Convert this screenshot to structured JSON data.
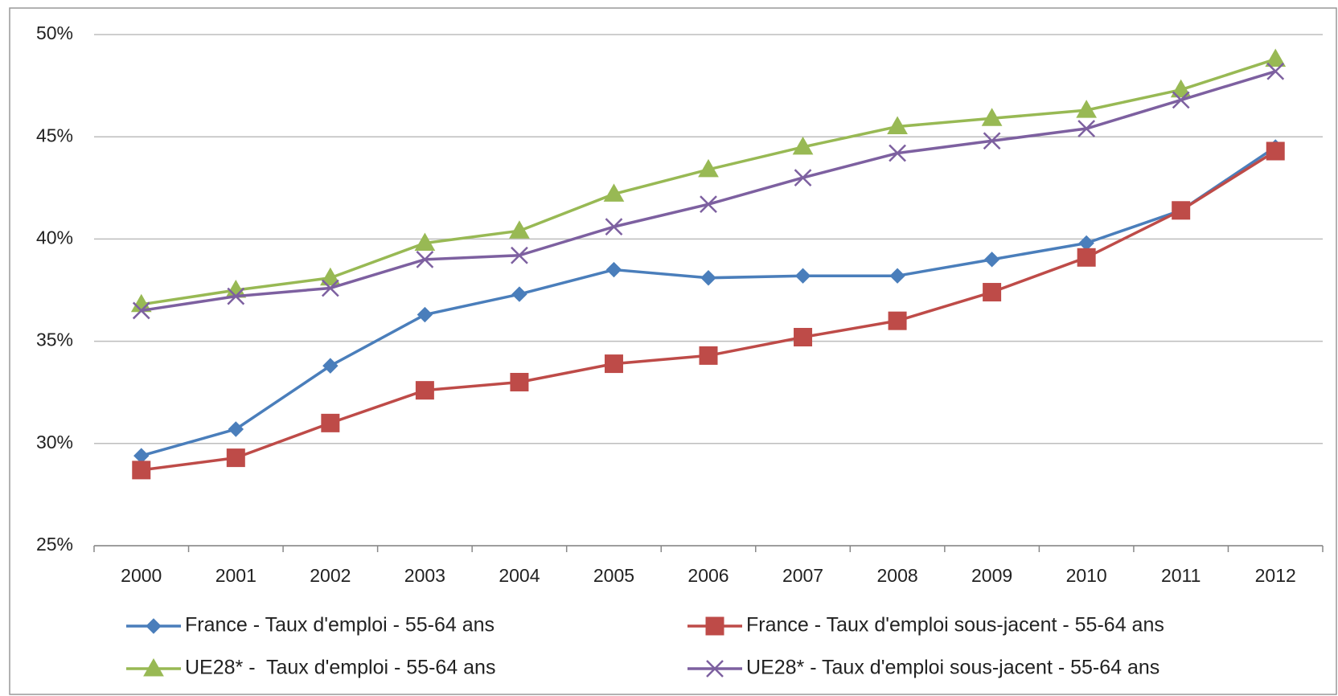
{
  "chart_data": {
    "type": "line",
    "categories": [
      "2000",
      "2001",
      "2002",
      "2003",
      "2004",
      "2005",
      "2006",
      "2007",
      "2008",
      "2009",
      "2010",
      "2011",
      "2012"
    ],
    "series": [
      {
        "name": "France - Taux d'emploi - 55-64 ans",
        "color": "#4a7ebb",
        "marker": "diamond",
        "values": [
          29.4,
          30.7,
          33.8,
          36.3,
          37.3,
          38.5,
          38.1,
          38.2,
          38.2,
          39.0,
          39.8,
          41.4,
          44.5
        ]
      },
      {
        "name": "France - Taux d'emploi sous-jacent - 55-64 ans",
        "color": "#be4b48",
        "marker": "square",
        "values": [
          28.7,
          29.3,
          31.0,
          32.6,
          33.0,
          33.9,
          34.3,
          35.2,
          36.0,
          37.4,
          39.1,
          41.4,
          44.3
        ]
      },
      {
        "name": "UE28* -  Taux d'emploi - 55-64 ans",
        "color": "#98b954",
        "marker": "triangle",
        "values": [
          36.8,
          37.5,
          38.1,
          39.8,
          40.4,
          42.2,
          43.4,
          44.5,
          45.5,
          45.9,
          46.3,
          47.3,
          48.8
        ]
      },
      {
        "name": "UE28* - Taux d'emploi sous-jacent - 55-64 ans",
        "color": "#7d60a0",
        "marker": "x",
        "values": [
          36.5,
          37.2,
          37.6,
          39.0,
          39.2,
          40.6,
          41.7,
          43.0,
          44.2,
          44.8,
          45.4,
          46.8,
          48.2
        ]
      }
    ],
    "ylim": [
      25,
      50
    ],
    "yticks": [
      {
        "value": 25,
        "label": "25%"
      },
      {
        "value": 30,
        "label": "30%"
      },
      {
        "value": 35,
        "label": "35%"
      },
      {
        "value": 40,
        "label": "40%"
      },
      {
        "value": 45,
        "label": "45%"
      },
      {
        "value": 50,
        "label": "50%"
      }
    ],
    "grid": true,
    "legend": "bottom"
  }
}
